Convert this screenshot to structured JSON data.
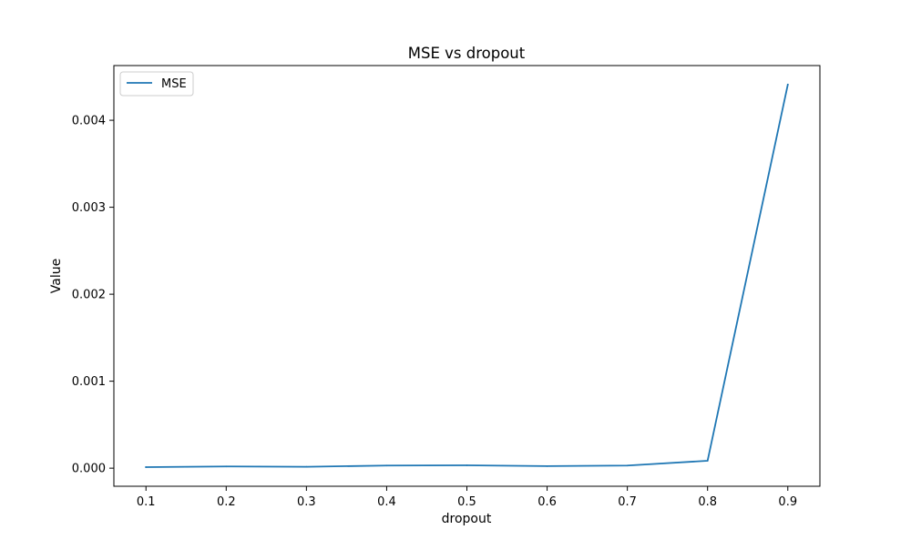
{
  "chart_data": {
    "type": "line",
    "title": "MSE vs dropout",
    "xlabel": "dropout",
    "ylabel": "Value",
    "x": [
      0.1,
      0.2,
      0.3,
      0.4,
      0.5,
      0.6,
      0.7,
      0.8,
      0.9
    ],
    "series": [
      {
        "name": "MSE",
        "color": "#1f77b4",
        "values": [
          1.2e-05,
          2e-05,
          1.6e-05,
          3e-05,
          3.3e-05,
          2.4e-05,
          3e-05,
          8.5e-05,
          0.00441
        ]
      }
    ],
    "xticks": [
      "0.1",
      "0.2",
      "0.3",
      "0.4",
      "0.5",
      "0.6",
      "0.7",
      "0.8",
      "0.9"
    ],
    "xtick_values": [
      0.1,
      0.2,
      0.3,
      0.4,
      0.5,
      0.6,
      0.7,
      0.8,
      0.9
    ],
    "yticks": [
      "0.000",
      "0.001",
      "0.002",
      "0.003",
      "0.004"
    ],
    "ytick_values": [
      0,
      0.001,
      0.002,
      0.003,
      0.004
    ],
    "xlim": [
      0.06,
      0.94
    ],
    "ylim": [
      -0.000208,
      0.004629
    ],
    "grid": false,
    "legend_position": "upper-left"
  }
}
